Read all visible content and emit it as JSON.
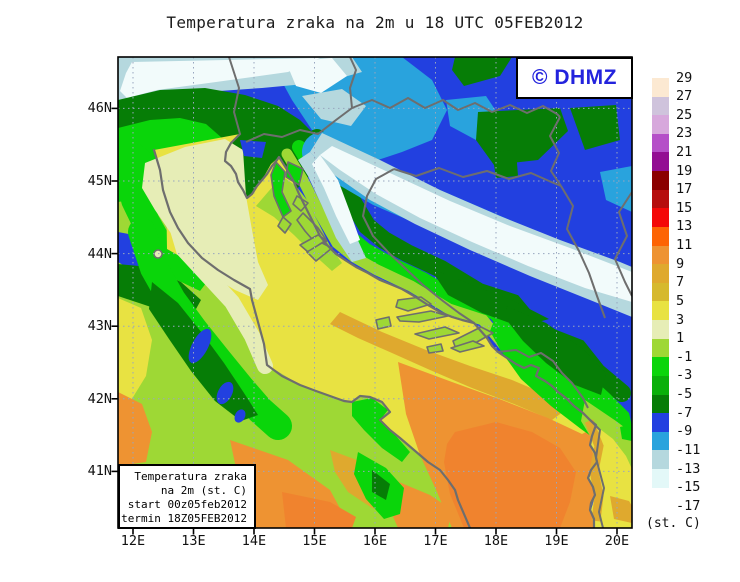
{
  "title": "Temperatura zraka na 2m u 18 UTC 05FEB2012",
  "logo": {
    "text": "© DHMZ",
    "color": "#2323dd"
  },
  "info_box": {
    "lines": [
      "Temperatura zraka",
      "na 2m (st. C)",
      "start 00z05feb2012",
      "termin 18Z05FEB2012"
    ]
  },
  "axes": {
    "lat_labels": [
      "46N",
      "45N",
      "44N",
      "43N",
      "42N",
      "41N"
    ],
    "lon_labels": [
      "12E",
      "13E",
      "14E",
      "15E",
      "16E",
      "17E",
      "18E",
      "19E",
      "20E"
    ]
  },
  "colorbar": {
    "unit_label": "(st. C)",
    "boundaries": [
      "29",
      "27",
      "25",
      "23",
      "21",
      "19",
      "17",
      "15",
      "13",
      "11",
      "9",
      "7",
      "5",
      "3",
      "1",
      "-1",
      "-3",
      "-5",
      "-7",
      "-9",
      "-11",
      "-13",
      "-15",
      "-17"
    ],
    "colors_top_to_bottom": [
      "#fce9d2",
      "#cfc3dc",
      "#d7a8dc",
      "#b54fc8",
      "#930d93",
      "#8b0000",
      "#b60d0d",
      "#f40808",
      "#fd6404",
      "#ee9332",
      "#dfa92e",
      "#d6b92e",
      "#e8e242",
      "#e6edb6",
      "#9ed835",
      "#0ad50a",
      "#09b009",
      "#067d06",
      "#2240e0",
      "#29a3dd",
      "#b5d8de",
      "#e3f8f8",
      "#ffffff"
    ]
  }
}
